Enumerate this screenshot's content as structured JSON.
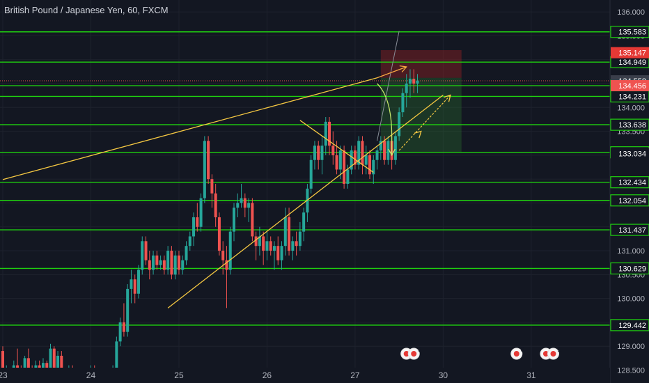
{
  "chart_data": {
    "type": "candlestick",
    "title": "British Pound / Japanese Yen, 60, FXCM",
    "ylim": [
      128.23,
      136.25
    ],
    "y_tick_labels": [
      "136.000",
      "135.500",
      "135.000",
      "134.500",
      "134.000",
      "133.500",
      "133.000",
      "132.500",
      "132.000",
      "131.500",
      "131.000",
      "130.500",
      "130.000",
      "129.500",
      "129.000",
      "128.500"
    ],
    "y_ticks": [
      136.0,
      135.5,
      135.0,
      134.5,
      134.0,
      133.5,
      133.0,
      132.5,
      132.0,
      131.5,
      131.0,
      130.5,
      130.0,
      129.5,
      129.0,
      128.5
    ],
    "x_tick_labels": [
      "23",
      "24",
      "25",
      "26",
      "27",
      "30",
      "31"
    ],
    "x_ticks": [
      0,
      24,
      48,
      72,
      96,
      120,
      144
    ],
    "x_range": [
      0,
      167
    ],
    "horizontal_levels": [
      {
        "value": 135.583,
        "label": "135.583"
      },
      {
        "value": 134.949,
        "label": "134.949"
      },
      {
        "value": 134.456,
        "label": "134.456"
      },
      {
        "value": 134.231,
        "label": "134.231"
      },
      {
        "value": 133.638,
        "label": "133.638"
      },
      {
        "value": 133.061,
        "label": "133.061"
      },
      {
        "value": 132.434,
        "label": "132.434"
      },
      {
        "value": 132.054,
        "label": "132.054"
      },
      {
        "value": 131.437,
        "label": "131.437"
      },
      {
        "value": 130.629,
        "label": "130.629"
      },
      {
        "value": 129.442,
        "label": "129.442"
      }
    ],
    "price_tags": [
      {
        "value": 135.147,
        "label": "135.147",
        "color": "#e53935"
      },
      {
        "value": 134.558,
        "label": "134.558",
        "color": "#3a3e4a"
      },
      {
        "value": 134.456,
        "label": "134.456",
        "color": "#ef5350"
      },
      {
        "value": 133.034,
        "label": "133.034",
        "color": "#131722"
      }
    ],
    "current_price": 134.558,
    "candles": [
      [
        0,
        128.9,
        129.0,
        128.3,
        128.45
      ],
      [
        1,
        128.45,
        128.6,
        128.3,
        128.5
      ],
      [
        2,
        128.5,
        128.55,
        128.3,
        128.35
      ],
      [
        3,
        128.35,
        128.7,
        128.3,
        128.6
      ],
      [
        4,
        128.6,
        128.95,
        128.45,
        128.5
      ],
      [
        5,
        128.5,
        128.6,
        128.3,
        128.4
      ],
      [
        6,
        128.4,
        128.8,
        128.35,
        128.75
      ],
      [
        7,
        128.75,
        128.95,
        128.4,
        128.45
      ],
      [
        8,
        128.45,
        128.6,
        128.3,
        128.35
      ],
      [
        9,
        128.35,
        128.7,
        128.3,
        128.6
      ],
      [
        10,
        128.6,
        128.7,
        128.3,
        128.35
      ],
      [
        11,
        128.35,
        128.75,
        128.3,
        128.65
      ],
      [
        12,
        128.65,
        128.7,
        128.3,
        128.4
      ],
      [
        13,
        128.4,
        129.05,
        128.35,
        128.95
      ],
      [
        14,
        128.95,
        129.0,
        128.3,
        128.4
      ],
      [
        15,
        128.4,
        128.9,
        128.3,
        128.8
      ],
      [
        16,
        128.8,
        128.9,
        128.3,
        128.35
      ],
      [
        17,
        128.35,
        128.5,
        128.3,
        128.4
      ],
      [
        18,
        128.4,
        128.6,
        128.3,
        128.55
      ],
      [
        19,
        128.55,
        128.6,
        128.3,
        128.35
      ],
      [
        20,
        128.35,
        128.55,
        128.3,
        128.5
      ],
      [
        21,
        128.5,
        128.55,
        128.3,
        128.35
      ],
      [
        22,
        128.35,
        128.5,
        128.3,
        128.45
      ],
      [
        23,
        128.45,
        128.55,
        128.3,
        128.4
      ],
      [
        24,
        128.4,
        128.6,
        128.35,
        128.55
      ],
      [
        25,
        128.55,
        128.6,
        128.35,
        128.4
      ],
      [
        26,
        128.4,
        128.55,
        128.35,
        128.5
      ],
      [
        27,
        128.5,
        128.55,
        128.35,
        128.4
      ],
      [
        28,
        128.4,
        128.5,
        128.3,
        128.45
      ],
      [
        29,
        128.45,
        128.55,
        128.3,
        128.4
      ],
      [
        30,
        128.4,
        128.6,
        128.35,
        128.55
      ],
      [
        31,
        128.55,
        129.2,
        128.5,
        129.1
      ],
      [
        32,
        129.1,
        129.6,
        129.0,
        129.5
      ],
      [
        33,
        129.5,
        129.9,
        129.2,
        129.3
      ],
      [
        34,
        129.3,
        130.3,
        129.2,
        130.2
      ],
      [
        35,
        130.2,
        130.6,
        129.9,
        130.4
      ],
      [
        36,
        130.4,
        130.5,
        129.9,
        130.1
      ],
      [
        37,
        130.1,
        130.7,
        130.0,
        130.6
      ],
      [
        38,
        130.6,
        131.3,
        130.5,
        131.2
      ],
      [
        39,
        131.2,
        131.3,
        130.7,
        130.8
      ],
      [
        40,
        130.8,
        131.0,
        130.4,
        130.6
      ],
      [
        41,
        130.6,
        131.0,
        130.5,
        130.9
      ],
      [
        42,
        130.9,
        131.0,
        130.6,
        130.7
      ],
      [
        43,
        130.7,
        130.9,
        130.6,
        130.8
      ],
      [
        44,
        130.8,
        130.9,
        130.5,
        130.6
      ],
      [
        45,
        130.6,
        131.1,
        130.5,
        131.0
      ],
      [
        46,
        131.0,
        131.1,
        130.4,
        130.5
      ],
      [
        47,
        130.5,
        131.0,
        130.4,
        130.9
      ],
      [
        48,
        130.9,
        131.0,
        130.5,
        130.6
      ],
      [
        49,
        130.6,
        130.9,
        130.5,
        130.8
      ],
      [
        50,
        130.8,
        131.2,
        130.7,
        131.1
      ],
      [
        51,
        131.1,
        131.4,
        131.0,
        131.3
      ],
      [
        52,
        131.3,
        131.8,
        131.1,
        131.7
      ],
      [
        53,
        131.7,
        132.0,
        131.4,
        131.5
      ],
      [
        54,
        131.5,
        132.2,
        131.4,
        132.1
      ],
      [
        55,
        132.1,
        133.4,
        132.0,
        133.3
      ],
      [
        56,
        133.3,
        133.4,
        132.4,
        132.5
      ],
      [
        57,
        132.5,
        132.6,
        131.9,
        132.2
      ],
      [
        58,
        132.2,
        132.4,
        131.5,
        131.7
      ],
      [
        59,
        131.7,
        131.8,
        130.9,
        131.0
      ],
      [
        60,
        131.0,
        131.2,
        130.5,
        130.8
      ],
      [
        61,
        130.8,
        131.1,
        129.8,
        130.6
      ],
      [
        62,
        130.6,
        131.5,
        130.5,
        131.4
      ],
      [
        63,
        131.4,
        132.0,
        131.2,
        131.9
      ],
      [
        64,
        131.9,
        132.2,
        131.7,
        132.0
      ],
      [
        65,
        132.0,
        132.4,
        131.9,
        132.1
      ],
      [
        66,
        132.1,
        132.2,
        131.7,
        131.9
      ],
      [
        67,
        131.9,
        132.1,
        131.6,
        132.0
      ],
      [
        68,
        132.0,
        132.1,
        131.2,
        131.3
      ],
      [
        69,
        131.3,
        131.4,
        130.8,
        131.1
      ],
      [
        70,
        131.1,
        131.5,
        130.9,
        131.3
      ],
      [
        71,
        131.3,
        131.4,
        130.7,
        131.0
      ],
      [
        72,
        131.0,
        131.4,
        130.8,
        131.2
      ],
      [
        73,
        131.2,
        131.3,
        130.9,
        131.0
      ],
      [
        74,
        131.0,
        131.2,
        130.6,
        131.1
      ],
      [
        75,
        131.1,
        131.3,
        130.7,
        130.8
      ],
      [
        76,
        130.8,
        131.2,
        130.6,
        131.1
      ],
      [
        77,
        131.1,
        131.9,
        130.9,
        131.7
      ],
      [
        78,
        131.7,
        131.9,
        130.9,
        131.0
      ],
      [
        79,
        131.0,
        131.3,
        130.8,
        131.2
      ],
      [
        80,
        131.2,
        131.4,
        130.9,
        131.1
      ],
      [
        81,
        131.1,
        131.6,
        131.0,
        131.4
      ],
      [
        82,
        131.4,
        131.9,
        131.2,
        131.8
      ],
      [
        83,
        131.8,
        132.4,
        131.6,
        132.3
      ],
      [
        84,
        132.3,
        133.0,
        132.2,
        132.9
      ],
      [
        85,
        132.9,
        133.3,
        132.7,
        133.2
      ],
      [
        86,
        133.2,
        133.3,
        132.7,
        132.9
      ],
      [
        87,
        132.9,
        133.4,
        132.6,
        133.2
      ],
      [
        88,
        133.2,
        133.8,
        133.0,
        133.7
      ],
      [
        89,
        133.7,
        133.8,
        133.0,
        133.2
      ],
      [
        90,
        133.2,
        133.5,
        132.8,
        133.0
      ],
      [
        91,
        133.0,
        133.3,
        132.6,
        132.7
      ],
      [
        92,
        132.7,
        133.2,
        132.5,
        133.1
      ],
      [
        93,
        133.1,
        133.2,
        132.3,
        132.4
      ],
      [
        94,
        132.4,
        132.8,
        132.3,
        132.7
      ],
      [
        95,
        132.7,
        133.2,
        132.6,
        133.1
      ],
      [
        96,
        133.1,
        133.2,
        132.7,
        132.8
      ],
      [
        97,
        132.8,
        133.4,
        132.7,
        133.3
      ],
      [
        98,
        133.3,
        133.4,
        132.6,
        132.8
      ],
      [
        99,
        132.8,
        133.2,
        132.6,
        133.0
      ],
      [
        100,
        133.0,
        133.1,
        132.5,
        132.6
      ],
      [
        101,
        132.6,
        133.0,
        132.4,
        132.9
      ],
      [
        102,
        132.9,
        133.2,
        132.7,
        133.1
      ],
      [
        103,
        133.1,
        133.4,
        132.9,
        133.3
      ],
      [
        104,
        133.3,
        133.4,
        132.8,
        132.9
      ],
      [
        105,
        132.9,
        133.4,
        132.8,
        133.3
      ],
      [
        106,
        133.3,
        133.4,
        132.7,
        132.9
      ],
      [
        107,
        132.9,
        133.5,
        132.8,
        133.4
      ],
      [
        108,
        133.4,
        134.0,
        133.3,
        133.9
      ],
      [
        109,
        133.9,
        134.4,
        133.8,
        134.3
      ],
      [
        110,
        134.3,
        134.7,
        134.0,
        134.5
      ],
      [
        111,
        134.5,
        134.8,
        134.2,
        134.6
      ],
      [
        112,
        134.6,
        134.8,
        134.3,
        134.5
      ],
      [
        113,
        134.5,
        134.7,
        134.3,
        134.56
      ]
    ],
    "drawings": {
      "upper_trendline": [
        [
          0,
          132.49
        ],
        [
          102,
          134.62
        ]
      ],
      "lower_trendline": [
        [
          45,
          129.8
        ],
        [
          120,
          134.26
        ]
      ],
      "channel_upper_line": [
        [
          81,
          133.73
        ],
        [
          101,
          132.64
        ]
      ],
      "channel_arrow": [
        [
          101,
          132.64
        ],
        [
          102,
          132.5
        ]
      ],
      "wedge_line": [
        [
          102,
          133.3
        ],
        [
          108,
          135.6
        ]
      ],
      "projection_arrow_1": [
        [
          102,
          134.62
        ],
        [
          110,
          134.85
        ]
      ],
      "projection_arrow_2": [
        [
          108,
          133.1
        ],
        [
          122,
          134.26
        ]
      ],
      "curve_arrow": [
        [
          102,
          134.5
        ],
        [
          104,
          134.2
        ],
        [
          106,
          133.4
        ],
        [
          106,
          133.0
        ]
      ],
      "short_position": {
        "x0": 103,
        "x1": 125,
        "entry": 134.62,
        "stop": 135.2,
        "target": 133.07
      }
    },
    "event_markers": [
      {
        "x": 110,
        "label": "2"
      },
      {
        "x": 112,
        "label": "5"
      },
      {
        "x": 140,
        "label": "8"
      },
      {
        "x": 148,
        "label": "2"
      },
      {
        "x": 150,
        "label": "1"
      }
    ]
  }
}
